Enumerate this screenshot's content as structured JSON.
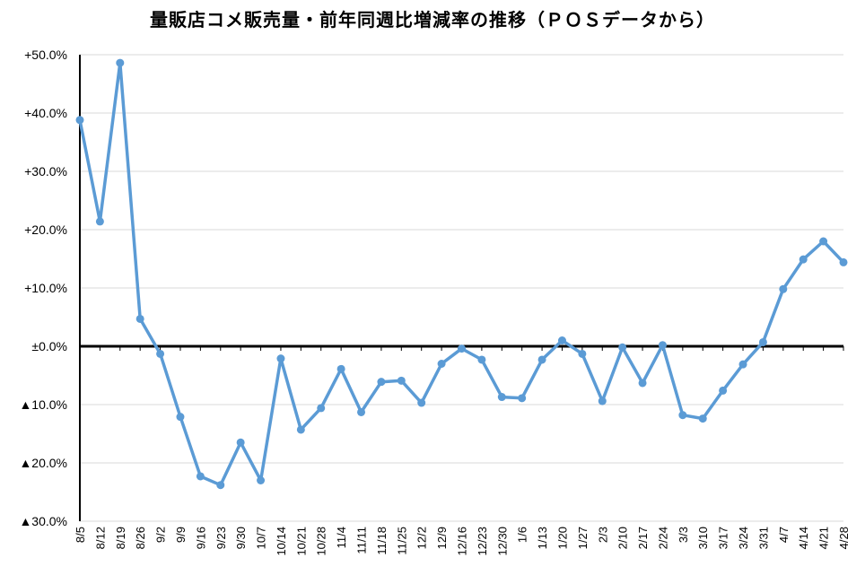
{
  "chart_data": {
    "type": "line",
    "title": "量販店コメ販売量・前年同週比増減率の推移（ＰＯＳデータから）",
    "xlabel": "",
    "ylabel": "",
    "ylim": [
      -30,
      50
    ],
    "y_ticks": [
      50,
      40,
      30,
      20,
      10,
      0,
      -10,
      -20,
      -30
    ],
    "y_tick_labels": [
      "+50.0%",
      "+40.0%",
      "+30.0%",
      "+20.0%",
      "+10.0%",
      "±0.0%",
      "▲10.0%",
      "▲20.0%",
      "▲30.0%"
    ],
    "grid": true,
    "color": "#5b9bd5",
    "axis_color": "#000000",
    "grid_color": "#d9d9d9",
    "categories": [
      "8/5",
      "8/12",
      "8/19",
      "8/26",
      "9/2",
      "9/9",
      "9/16",
      "9/23",
      "9/30",
      "10/7",
      "10/14",
      "10/21",
      "10/28",
      "11/4",
      "11/11",
      "11/18",
      "11/25",
      "12/2",
      "12/9",
      "12/16",
      "12/23",
      "12/30",
      "1/6",
      "1/13",
      "1/20",
      "1/27",
      "2/3",
      "2/10",
      "2/17",
      "2/24",
      "3/3",
      "3/10",
      "3/17",
      "3/24",
      "3/31",
      "4/7",
      "4/14",
      "4/21",
      "4/28"
    ],
    "series": [
      {
        "values": [
          38.8,
          21.4,
          48.6,
          4.7,
          -1.3,
          -12.1,
          -22.3,
          -23.8,
          -16.5,
          -23.0,
          -2.1,
          -14.3,
          -10.6,
          -3.9,
          -11.3,
          -6.1,
          -5.9,
          -9.7,
          -3.0,
          -0.4,
          -2.3,
          -8.7,
          -8.9,
          -2.3,
          1.0,
          -1.3,
          -9.4,
          -0.2,
          -6.3,
          0.2,
          -11.8,
          -12.4,
          -7.6,
          -3.1,
          0.7,
          9.8,
          14.9,
          18.0,
          14.4
        ]
      }
    ]
  }
}
